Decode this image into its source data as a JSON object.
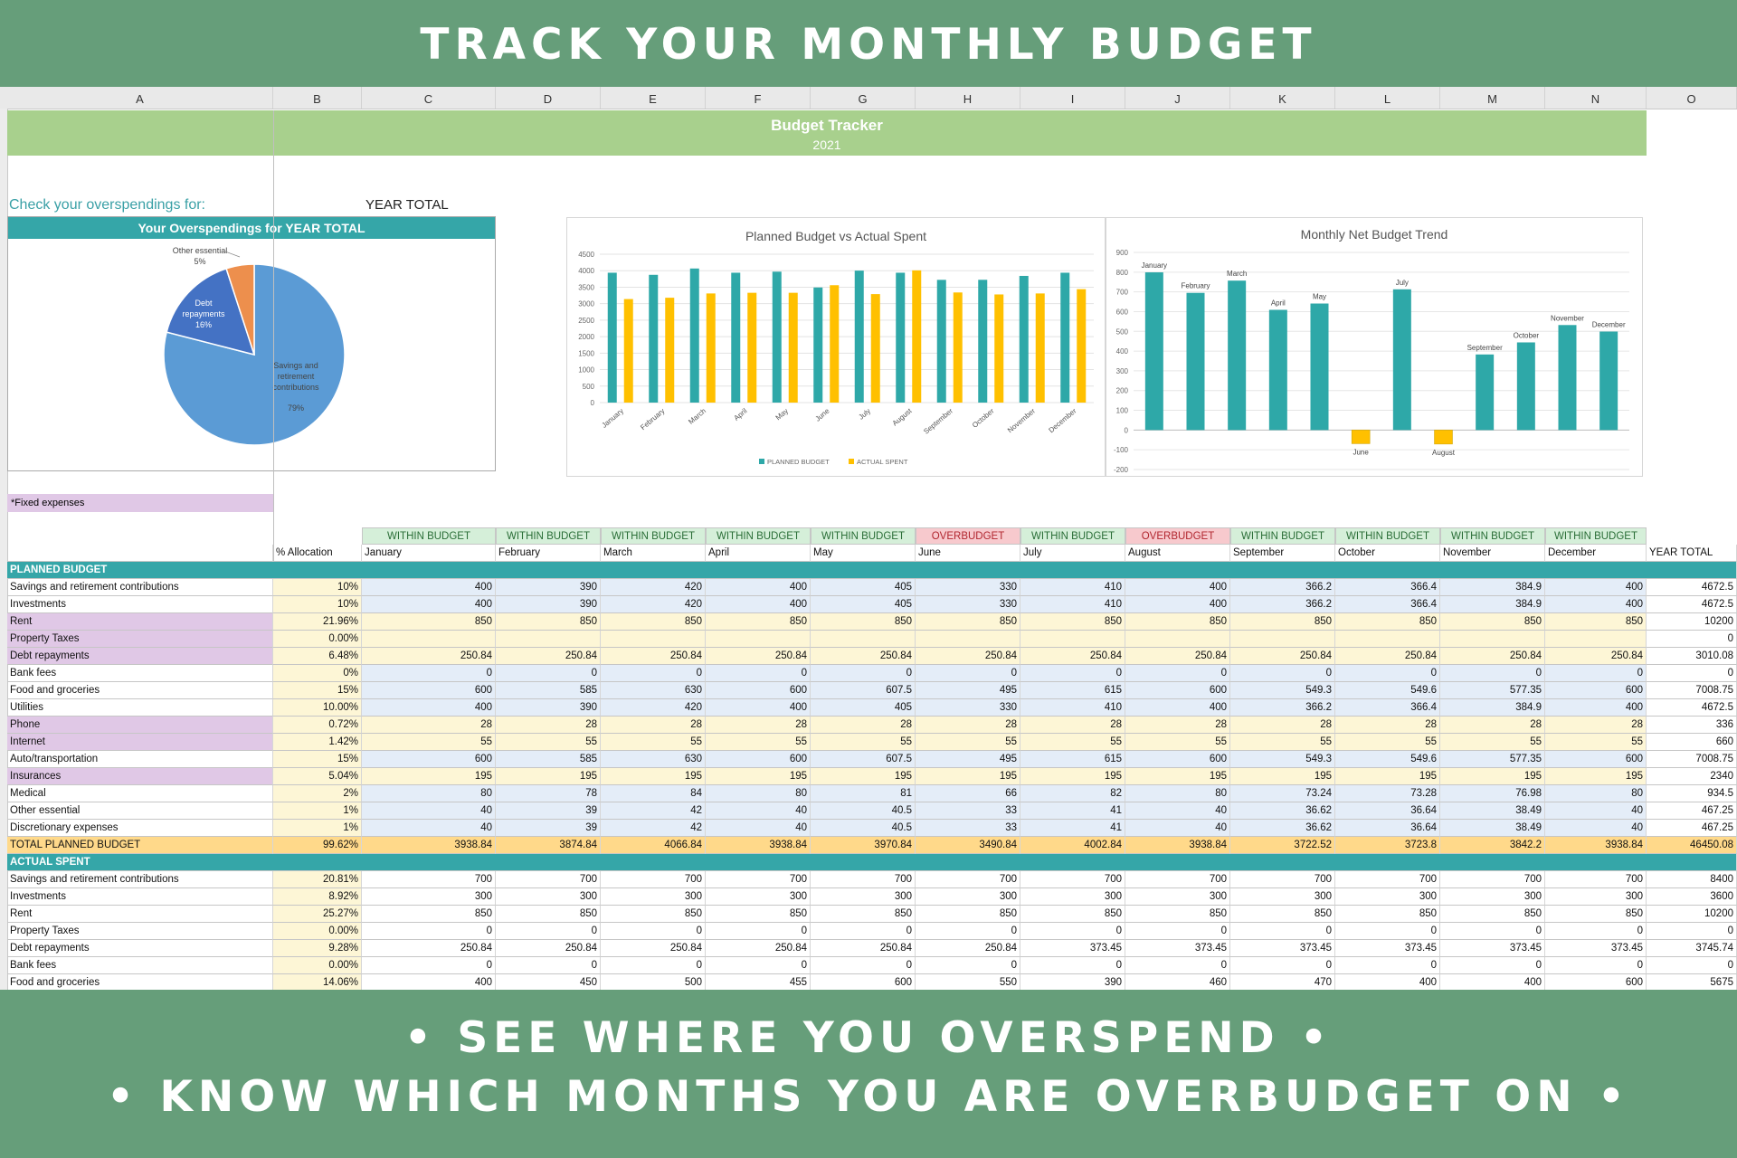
{
  "banner_top": "TRACK YOUR MONTHLY BUDGET",
  "banner_bottom": [
    "• SEE WHERE YOU OVERSPEND •",
    "• KNOW WHICH MONTHS YOU ARE OVERBUDGET ON •"
  ],
  "columns": [
    "A",
    "B",
    "C",
    "D",
    "E",
    "F",
    "G",
    "H",
    "I",
    "J",
    "K",
    "L",
    "M",
    "N",
    "O"
  ],
  "sheet_title": "Budget Tracker",
  "sheet_year": "2021",
  "check_label": "Check your overspendings for:",
  "check_value": "YEAR TOTAL",
  "fixed_label": "*Fixed expenses",
  "colors": {
    "banner": "#669e7a",
    "teal": "#35a6a8",
    "green_title": "#a8d08d",
    "planned": "#2ea8a8",
    "actual": "#ffc000",
    "pie_main": "#5b9bd5",
    "pie_debt": "#4472c4",
    "pie_other": "#ed8f4d"
  },
  "pie_chart": {
    "type": "pie",
    "title": "Your Overspendings for YEAR TOTAL",
    "slices": [
      {
        "label": "Savings and retirement contributions",
        "value": 79,
        "display": "79%"
      },
      {
        "label": "Debt repayments",
        "value": 16,
        "display": "16%"
      },
      {
        "label": "Other essential",
        "value": 5,
        "display": "5%"
      }
    ]
  },
  "chart_data": [
    {
      "type": "bar",
      "title": "Planned Budget vs Actual Spent",
      "categories": [
        "January",
        "February",
        "March",
        "April",
        "May",
        "June",
        "July",
        "August",
        "September",
        "October",
        "November",
        "December"
      ],
      "series": [
        {
          "name": "PLANNED BUDGET",
          "values": [
            3938.84,
            3874.84,
            4066.84,
            3938.84,
            3970.84,
            3490.84,
            4002.84,
            3938.84,
            3722.52,
            3723.8,
            3842.2,
            3938.84
          ]
        },
        {
          "name": "ACTUAL SPENT",
          "values": [
            3140,
            3180,
            3310,
            3330,
            3330,
            3560,
            3290,
            4010,
            3340,
            3280,
            3310,
            3440
          ]
        }
      ],
      "ylim": [
        0,
        4500
      ],
      "yticks": [
        0,
        500,
        1000,
        1500,
        2000,
        2500,
        3000,
        3500,
        4000,
        4500
      ],
      "legend": "bottom"
    },
    {
      "type": "bar",
      "title": "Monthly Net Budget Trend",
      "categories": [
        "January",
        "February",
        "March",
        "April",
        "May",
        "June",
        "July",
        "August",
        "September",
        "October",
        "November",
        "December"
      ],
      "values": [
        799,
        695,
        757,
        609,
        641,
        -69,
        713,
        -71,
        383,
        444,
        532,
        499
      ],
      "ylim": [
        -200,
        900
      ],
      "yticks": [
        -200,
        -100,
        0,
        100,
        200,
        300,
        400,
        500,
        600,
        700,
        800,
        900
      ],
      "positive_color": "#2ea8a8",
      "negative_color": "#ffc000"
    }
  ],
  "table": {
    "status": [
      "WITHIN BUDGET",
      "WITHIN BUDGET",
      "WITHIN BUDGET",
      "WITHIN BUDGET",
      "WITHIN BUDGET",
      "OVERBUDGET",
      "WITHIN BUDGET",
      "OVERBUDGET",
      "WITHIN BUDGET",
      "WITHIN BUDGET",
      "WITHIN BUDGET",
      "WITHIN BUDGET"
    ],
    "header": [
      "",
      "% Allocation",
      "January",
      "February",
      "March",
      "April",
      "May",
      "June",
      "July",
      "August",
      "September",
      "October",
      "November",
      "December",
      "YEAR TOTAL"
    ],
    "planned_label": "PLANNED BUDGET",
    "planned": [
      {
        "label": "Savings and retirement contributions",
        "fixed": false,
        "pct": "10%",
        "vals": [
          "400",
          "390",
          "420",
          "400",
          "405",
          "330",
          "410",
          "400",
          "366.2",
          "366.4",
          "384.9",
          "400"
        ],
        "total": "4672.5"
      },
      {
        "label": "Investments",
        "fixed": false,
        "pct": "10%",
        "vals": [
          "400",
          "390",
          "420",
          "400",
          "405",
          "330",
          "410",
          "400",
          "366.2",
          "366.4",
          "384.9",
          "400"
        ],
        "total": "4672.5"
      },
      {
        "label": "Rent",
        "fixed": true,
        "pct": "21.96%",
        "vals": [
          "850",
          "850",
          "850",
          "850",
          "850",
          "850",
          "850",
          "850",
          "850",
          "850",
          "850",
          "850"
        ],
        "total": "10200"
      },
      {
        "label": "Property Taxes",
        "fixed": true,
        "pct": "0.00%",
        "vals": [
          "",
          "",
          "",
          "",
          "",
          "",
          "",
          "",
          "",
          "",
          "",
          ""
        ],
        "total": "0"
      },
      {
        "label": "Debt repayments",
        "fixed": true,
        "pct": "6.48%",
        "vals": [
          "250.84",
          "250.84",
          "250.84",
          "250.84",
          "250.84",
          "250.84",
          "250.84",
          "250.84",
          "250.84",
          "250.84",
          "250.84",
          "250.84"
        ],
        "total": "3010.08"
      },
      {
        "label": "Bank fees",
        "fixed": false,
        "pct": "0%",
        "vals": [
          "0",
          "0",
          "0",
          "0",
          "0",
          "0",
          "0",
          "0",
          "0",
          "0",
          "0",
          "0"
        ],
        "total": "0"
      },
      {
        "label": "Food and groceries",
        "fixed": false,
        "pct": "15%",
        "vals": [
          "600",
          "585",
          "630",
          "600",
          "607.5",
          "495",
          "615",
          "600",
          "549.3",
          "549.6",
          "577.35",
          "600"
        ],
        "total": "7008.75"
      },
      {
        "label": "Utilities",
        "fixed": false,
        "pct": "10.00%",
        "vals": [
          "400",
          "390",
          "420",
          "400",
          "405",
          "330",
          "410",
          "400",
          "366.2",
          "366.4",
          "384.9",
          "400"
        ],
        "total": "4672.5"
      },
      {
        "label": "Phone",
        "fixed": true,
        "pct": "0.72%",
        "vals": [
          "28",
          "28",
          "28",
          "28",
          "28",
          "28",
          "28",
          "28",
          "28",
          "28",
          "28",
          "28"
        ],
        "total": "336"
      },
      {
        "label": "Internet",
        "fixed": true,
        "pct": "1.42%",
        "vals": [
          "55",
          "55",
          "55",
          "55",
          "55",
          "55",
          "55",
          "55",
          "55",
          "55",
          "55",
          "55"
        ],
        "total": "660"
      },
      {
        "label": "Auto/transportation",
        "fixed": false,
        "pct": "15%",
        "vals": [
          "600",
          "585",
          "630",
          "600",
          "607.5",
          "495",
          "615",
          "600",
          "549.3",
          "549.6",
          "577.35",
          "600"
        ],
        "total": "7008.75"
      },
      {
        "label": "Insurances",
        "fixed": true,
        "pct": "5.04%",
        "vals": [
          "195",
          "195",
          "195",
          "195",
          "195",
          "195",
          "195",
          "195",
          "195",
          "195",
          "195",
          "195"
        ],
        "total": "2340"
      },
      {
        "label": "Medical",
        "fixed": false,
        "pct": "2%",
        "vals": [
          "80",
          "78",
          "84",
          "80",
          "81",
          "66",
          "82",
          "80",
          "73.24",
          "73.28",
          "76.98",
          "80"
        ],
        "total": "934.5"
      },
      {
        "label": "Other essential",
        "fixed": false,
        "pct": "1%",
        "vals": [
          "40",
          "39",
          "42",
          "40",
          "40.5",
          "33",
          "41",
          "40",
          "36.62",
          "36.64",
          "38.49",
          "40"
        ],
        "total": "467.25"
      },
      {
        "label": "Discretionary expenses",
        "fixed": false,
        "pct": "1%",
        "vals": [
          "40",
          "39",
          "42",
          "40",
          "40.5",
          "33",
          "41",
          "40",
          "36.62",
          "36.64",
          "38.49",
          "40"
        ],
        "total": "467.25"
      }
    ],
    "planned_total": {
      "label": "TOTAL PLANNED BUDGET",
      "pct": "99.62%",
      "vals": [
        "3938.84",
        "3874.84",
        "4066.84",
        "3938.84",
        "3970.84",
        "3490.84",
        "4002.84",
        "3938.84",
        "3722.52",
        "3723.8",
        "3842.2",
        "3938.84"
      ],
      "total": "46450.08"
    },
    "actual_label": "ACTUAL SPENT",
    "actual": [
      {
        "label": "Savings and retirement contributions",
        "pct": "20.81%",
        "vals": [
          "700",
          "700",
          "700",
          "700",
          "700",
          "700",
          "700",
          "700",
          "700",
          "700",
          "700",
          "700"
        ],
        "total": "8400"
      },
      {
        "label": "Investments",
        "pct": "8.92%",
        "vals": [
          "300",
          "300",
          "300",
          "300",
          "300",
          "300",
          "300",
          "300",
          "300",
          "300",
          "300",
          "300"
        ],
        "total": "3600"
      },
      {
        "label": "Rent",
        "pct": "25.27%",
        "vals": [
          "850",
          "850",
          "850",
          "850",
          "850",
          "850",
          "850",
          "850",
          "850",
          "850",
          "850",
          "850"
        ],
        "total": "10200"
      },
      {
        "label": "Property Taxes",
        "pct": "0.00%",
        "vals": [
          "0",
          "0",
          "0",
          "0",
          "0",
          "0",
          "0",
          "0",
          "0",
          "0",
          "0",
          "0"
        ],
        "total": "0"
      },
      {
        "label": "Debt repayments",
        "pct": "9.28%",
        "vals": [
          "250.84",
          "250.84",
          "250.84",
          "250.84",
          "250.84",
          "250.84",
          "373.45",
          "373.45",
          "373.45",
          "373.45",
          "373.45",
          "373.45"
        ],
        "total": "3745.74"
      },
      {
        "label": "Bank fees",
        "pct": "0.00%",
        "vals": [
          "0",
          "0",
          "0",
          "0",
          "0",
          "0",
          "0",
          "0",
          "0",
          "0",
          "0",
          "0"
        ],
        "total": "0"
      },
      {
        "label": "Food and groceries",
        "pct": "14.06%",
        "vals": [
          "400",
          "450",
          "500",
          "455",
          "600",
          "550",
          "390",
          "460",
          "470",
          "400",
          "400",
          "600"
        ],
        "total": "5675"
      }
    ]
  }
}
